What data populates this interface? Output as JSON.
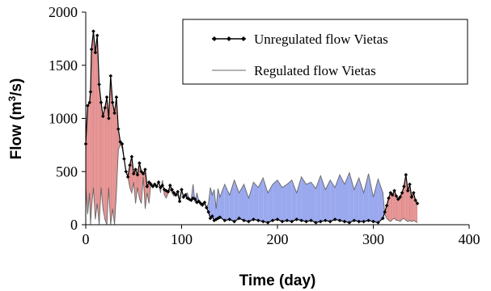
{
  "chart_data": {
    "type": "line",
    "xlabel": "Time (day)",
    "ylabel": "Flow (m³/s)",
    "ylabel_parts": [
      "Flow (m",
      "3",
      "/s)"
    ],
    "xlim": [
      0,
      400
    ],
    "ylim": [
      0,
      2000
    ],
    "xticks": [
      0,
      100,
      200,
      300,
      400
    ],
    "yticks": [
      0,
      500,
      1000,
      1500,
      2000
    ],
    "grid": false,
    "legend_position": "top-right",
    "colors": {
      "unregulated": "#000000",
      "regulated": "#666666",
      "fill_regulated_above": "#9aa8ee",
      "fill_unregulated_above": "#e49090"
    },
    "series": [
      {
        "name": "Unregulated flow Vietas",
        "style": "line-with-diamond-markers",
        "x": [
          0,
          2,
          4,
          5,
          6,
          8,
          10,
          12,
          14,
          16,
          18,
          20,
          22,
          24,
          26,
          28,
          30,
          32,
          34,
          36,
          38,
          40,
          42,
          44,
          46,
          48,
          50,
          52,
          54,
          56,
          58,
          60,
          62,
          64,
          66,
          68,
          70,
          72,
          74,
          76,
          78,
          80,
          82,
          84,
          86,
          88,
          90,
          92,
          94,
          96,
          98,
          100,
          102,
          104,
          106,
          108,
          110,
          112,
          114,
          116,
          118,
          120,
          122,
          124,
          126,
          128,
          130,
          132,
          134,
          136,
          138,
          140,
          145,
          150,
          155,
          160,
          165,
          170,
          175,
          180,
          185,
          190,
          195,
          200,
          205,
          210,
          215,
          220,
          225,
          230,
          235,
          240,
          245,
          250,
          255,
          260,
          265,
          270,
          275,
          280,
          285,
          290,
          295,
          300,
          305,
          310,
          312,
          314,
          316,
          318,
          320,
          322,
          324,
          326,
          328,
          330,
          332,
          334,
          336,
          338,
          340,
          342,
          344,
          346
        ],
        "y": [
          760,
          1120,
          1150,
          1250,
          1650,
          1820,
          1620,
          1780,
          1320,
          1150,
          1020,
          1100,
          1200,
          1000,
          1400,
          1150,
          1050,
          1200,
          900,
          780,
          760,
          620,
          500,
          450,
          560,
          640,
          480,
          520,
          470,
          580,
          500,
          480,
          520,
          360,
          400,
          380,
          360,
          380,
          360,
          400,
          350,
          370,
          330,
          320,
          310,
          370,
          330,
          300,
          280,
          310,
          220,
          330,
          260,
          280,
          250,
          240,
          230,
          250,
          240,
          210,
          220,
          200,
          190,
          210,
          160,
          120,
          60,
          80,
          40,
          50,
          60,
          70,
          40,
          50,
          30,
          60,
          40,
          30,
          50,
          40,
          30,
          20,
          40,
          50,
          30,
          40,
          30,
          50,
          40,
          30,
          40,
          20,
          30,
          40,
          30,
          50,
          40,
          30,
          20,
          40,
          30,
          30,
          40,
          30,
          20,
          60,
          120,
          180,
          250,
          300,
          280,
          320,
          270,
          240,
          260,
          300,
          360,
          470,
          320,
          380,
          260,
          300,
          230,
          200
        ],
        "smooth": false
      },
      {
        "name": "Regulated flow Vietas",
        "style": "thin-line",
        "x": [
          0,
          2,
          4,
          5,
          6,
          8,
          10,
          12,
          14,
          16,
          18,
          20,
          22,
          24,
          26,
          28,
          30,
          32,
          34,
          36,
          38,
          40,
          42,
          44,
          46,
          48,
          50,
          52,
          54,
          56,
          58,
          60,
          62,
          64,
          66,
          68,
          70,
          72,
          74,
          76,
          78,
          80,
          82,
          84,
          86,
          88,
          90,
          92,
          94,
          96,
          98,
          100,
          102,
          104,
          106,
          108,
          110,
          112,
          114,
          116,
          118,
          120,
          122,
          124,
          126,
          128,
          130,
          132,
          134,
          136,
          138,
          140,
          145,
          150,
          155,
          160,
          165,
          170,
          175,
          180,
          185,
          190,
          195,
          200,
          205,
          210,
          215,
          220,
          225,
          230,
          235,
          240,
          245,
          250,
          255,
          260,
          265,
          270,
          275,
          280,
          285,
          290,
          295,
          300,
          305,
          310,
          312,
          314,
          316,
          318,
          320,
          322,
          324,
          326,
          328,
          330,
          332,
          334,
          336,
          338,
          340,
          342,
          344,
          346
        ],
        "y": [
          350,
          100,
          300,
          0,
          150,
          350,
          50,
          200,
          0,
          350,
          150,
          50,
          0,
          350,
          0,
          150,
          0,
          300,
          700,
          760,
          720,
          620,
          500,
          450,
          350,
          300,
          400,
          200,
          350,
          250,
          200,
          450,
          150,
          300,
          200,
          400,
          350,
          380,
          360,
          410,
          300,
          420,
          280,
          250,
          300,
          330,
          300,
          270,
          290,
          280,
          210,
          330,
          260,
          290,
          300,
          240,
          240,
          380,
          210,
          300,
          220,
          180,
          170,
          210,
          160,
          200,
          350,
          280,
          330,
          150,
          340,
          260,
          380,
          280,
          420,
          300,
          380,
          250,
          400,
          350,
          440,
          300,
          380,
          420,
          350,
          380,
          420,
          300,
          450,
          380,
          400,
          340,
          460,
          330,
          420,
          350,
          470,
          380,
          490,
          330,
          440,
          300,
          480,
          260,
          430,
          300,
          100,
          60,
          40,
          30,
          50,
          60,
          40,
          40,
          30,
          50,
          60,
          40,
          30,
          40,
          30,
          40,
          30,
          20
        ],
        "smooth": false
      }
    ]
  }
}
